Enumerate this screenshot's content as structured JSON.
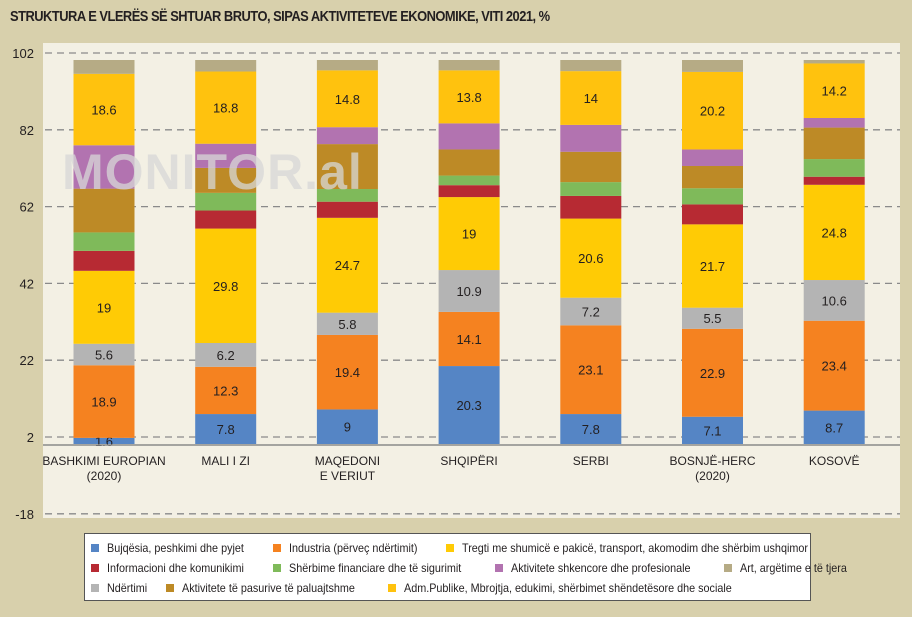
{
  "chart_data": {
    "type": "bar",
    "stacked": true,
    "title": "STRUKTURA E VLERËS SË SHTUAR BRUTO, SIPAS AKTIVITETEVE EKONOMIKE, VITI 2021, %",
    "xlabel": "",
    "ylabel": "",
    "ylim": [
      -18,
      102
    ],
    "yticks": [
      102,
      82,
      62,
      42,
      22,
      2,
      -18
    ],
    "grid": true,
    "legend_position": "bottom",
    "watermark": "MONITOR.al",
    "categories": [
      [
        "BASHKIMI EUROPIAN",
        "(2020)"
      ],
      [
        "MALI I ZI"
      ],
      [
        "MAQEDONI",
        "E VERIUT"
      ],
      [
        "SHQIPËRI"
      ],
      [
        "SERBI"
      ],
      [
        "BOSNJË-HERC",
        "(2020)"
      ],
      [
        "KOSOVË"
      ]
    ],
    "series": [
      {
        "name": "Bujqësia, peshkimi dhe pyjet",
        "color": "#5585c5",
        "values": [
          1.6,
          7.8,
          9,
          20.3,
          7.8,
          7.1,
          8.7
        ],
        "labeled": true
      },
      {
        "name": "Industria (përveç ndërtimit)",
        "color": "#f58220",
        "values": [
          18.9,
          12.3,
          19.4,
          14.1,
          23.1,
          22.9,
          23.4
        ],
        "labeled": true
      },
      {
        "name": "Ndërtimi",
        "color": "#b4b4b4",
        "values": [
          5.6,
          6.2,
          5.8,
          10.9,
          7.2,
          5.5,
          10.6
        ],
        "labeled": true
      },
      {
        "name": "Tregti me shumicë e pakicë, transport, akomodim dhe shërbim ushqimor",
        "color": "#ffcb05",
        "values": [
          19,
          29.8,
          24.7,
          19,
          20.6,
          21.7,
          24.8
        ],
        "labeled": true
      },
      {
        "name": "Informacioni dhe komunikimi",
        "color": "#b72a33",
        "values": [
          5.2,
          4.7,
          4.2,
          3.1,
          5.9,
          5.2,
          2.1
        ],
        "labeled": false
      },
      {
        "name": "Shërbime financiare dhe të sigurimit",
        "color": "#7fba5a",
        "values": [
          4.8,
          4.6,
          3.3,
          2.5,
          3.6,
          4.2,
          4.6
        ],
        "labeled": false
      },
      {
        "name": "Aktivitete të pasurive të paluajtshme",
        "color": "#bd8a26",
        "values": [
          11.4,
          6.5,
          11.7,
          6.8,
          7.9,
          5.8,
          8.2
        ],
        "labeled": false
      },
      {
        "name": "Aktivitete shkencore dhe profesionale",
        "color": "#b273b0",
        "values": [
          11.3,
          6.3,
          4.4,
          6.8,
          7.0,
          4.3,
          2.5
        ],
        "labeled": false
      },
      {
        "name": "Adm.Publike, Mbrojtja, edukimi, shërbimet shëndetësore dhe sociale",
        "color": "#ffc20e",
        "values": [
          18.6,
          18.8,
          14.8,
          13.8,
          14,
          20.2,
          14.2
        ],
        "labeled": true
      },
      {
        "name": "Art, argëtime e të tjera",
        "color": "#b6ab85",
        "values": [
          3.6,
          3.0,
          2.7,
          2.7,
          2.9,
          3.1,
          0.9
        ],
        "labeled": false
      }
    ],
    "legend_rows": [
      [
        0,
        1,
        3
      ],
      [
        4,
        5,
        7,
        9
      ],
      [
        2,
        6,
        8
      ]
    ]
  }
}
